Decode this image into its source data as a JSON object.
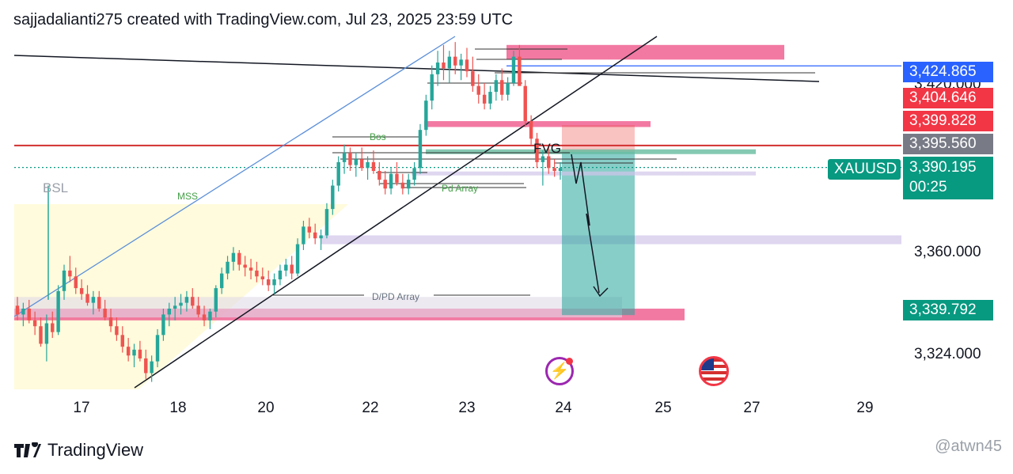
{
  "header": {
    "text": "sajjadalianti275 created with TradingView.com, Jul 23, 2025 23:59 UTC"
  },
  "footer": {
    "brand": "TradingView",
    "watermark": "@atwn45"
  },
  "drawing_labels": {
    "bsl": "BSL",
    "mss": "MSS",
    "bos": "Bos",
    "fvg": "FVG",
    "pd_array": "Pd Array",
    "dpd_array": "D/PD Array"
  },
  "price_tags": {
    "hline_top": "3,424.865",
    "partial_behind": "3,420.000",
    "red_level": "3,404.646",
    "red_level_2": "3,399.828",
    "grey_level": "3,395.560",
    "symbol": "XAUUSD",
    "current": "3,390.195",
    "countdown": "00:25",
    "target": "3,339.792"
  },
  "colors": {
    "up": "#26a69a",
    "down": "#ef5350",
    "blue_tag": "#2962ff",
    "red_tag": "#f23645",
    "grey_tag": "#787b86",
    "teal_tag": "#089981",
    "pink_zone": "#f06292",
    "lavender_zone": "#d1c4e9",
    "yellow_zone": "#fff9c4",
    "target_zone": "#26a69a",
    "stop_zone": "#ef5350"
  },
  "icons": [
    "tradingview-logo-icon",
    "lightning-event-icon",
    "us-flag-event-icon"
  ],
  "chart_data": {
    "type": "candlestick",
    "symbol": "XAUUSD",
    "x_labels": [
      "17",
      "18",
      "20",
      "22",
      "23",
      "24",
      "25",
      "27",
      "29"
    ],
    "y_labels": [
      "3,324.000",
      "3,360.000"
    ],
    "ylim": [
      3315,
      3436
    ],
    "current_price": 3390.195,
    "levels": {
      "blue_hline": 3424.865,
      "red_level": 3404.646,
      "red_level_2": 3399.828,
      "grey_level": 3395.56,
      "current": 3390.195,
      "target": 3339.792
    },
    "candles_ohlc": [
      [
        3343,
        3346,
        3338,
        3340
      ],
      [
        3340,
        3344,
        3336,
        3342
      ],
      [
        3342,
        3345,
        3337,
        3338
      ],
      [
        3338,
        3341,
        3333,
        3336
      ],
      [
        3336,
        3339,
        3329,
        3330
      ],
      [
        3330,
        3340,
        3324,
        3337
      ],
      [
        3337,
        3341,
        3332,
        3334
      ],
      [
        3334,
        3350,
        3333,
        3348
      ],
      [
        3348,
        3357,
        3345,
        3355
      ],
      [
        3355,
        3360,
        3351,
        3353
      ],
      [
        3353,
        3356,
        3347,
        3349
      ],
      [
        3349,
        3352,
        3345,
        3347
      ],
      [
        3347,
        3350,
        3343,
        3344
      ],
      [
        3344,
        3348,
        3340,
        3346
      ],
      [
        3346,
        3348,
        3341,
        3342
      ],
      [
        3342,
        3345,
        3338,
        3339
      ],
      [
        3339,
        3342,
        3334,
        3336
      ],
      [
        3336,
        3339,
        3331,
        3333
      ],
      [
        3333,
        3336,
        3327,
        3329
      ],
      [
        3329,
        3332,
        3324,
        3326
      ],
      [
        3326,
        3330,
        3322,
        3328
      ],
      [
        3328,
        3331,
        3324,
        3325
      ],
      [
        3325,
        3328,
        3318,
        3320
      ],
      [
        3320,
        3326,
        3317,
        3324
      ],
      [
        3324,
        3335,
        3322,
        3333
      ],
      [
        3333,
        3342,
        3331,
        3340
      ],
      [
        3340,
        3344,
        3336,
        3342
      ],
      [
        3342,
        3346,
        3338,
        3343
      ],
      [
        3343,
        3347,
        3340,
        3344
      ],
      [
        3344,
        3348,
        3341,
        3346
      ],
      [
        3346,
        3349,
        3342,
        3343
      ],
      [
        3343,
        3346,
        3339,
        3340
      ],
      [
        3340,
        3343,
        3336,
        3338
      ],
      [
        3338,
        3342,
        3335,
        3341
      ],
      [
        3341,
        3350,
        3339,
        3349
      ],
      [
        3349,
        3356,
        3347,
        3354
      ],
      [
        3354,
        3360,
        3352,
        3358
      ],
      [
        3358,
        3363,
        3355,
        3361
      ],
      [
        3361,
        3362,
        3355,
        3357
      ],
      [
        3357,
        3360,
        3353,
        3356
      ],
      [
        3356,
        3359,
        3352,
        3355
      ],
      [
        3355,
        3358,
        3351,
        3353
      ],
      [
        3353,
        3356,
        3350,
        3352
      ],
      [
        3352,
        3355,
        3348,
        3350
      ],
      [
        3350,
        3354,
        3347,
        3352
      ],
      [
        3352,
        3357,
        3350,
        3355
      ],
      [
        3355,
        3359,
        3353,
        3357
      ],
      [
        3357,
        3360,
        3352,
        3354
      ],
      [
        3354,
        3366,
        3353,
        3364
      ],
      [
        3364,
        3372,
        3362,
        3370
      ],
      [
        3370,
        3373,
        3366,
        3368
      ],
      [
        3368,
        3371,
        3364,
        3366
      ],
      [
        3366,
        3369,
        3362,
        3367
      ],
      [
        3367,
        3378,
        3366,
        3376
      ],
      [
        3376,
        3386,
        3374,
        3384
      ],
      [
        3384,
        3394,
        3382,
        3392
      ],
      [
        3392,
        3398,
        3388,
        3395
      ],
      [
        3395,
        3397,
        3389,
        3391
      ],
      [
        3391,
        3395,
        3387,
        3393
      ],
      [
        3393,
        3397,
        3389,
        3390
      ],
      [
        3390,
        3394,
        3386,
        3392
      ],
      [
        3392,
        3396,
        3388,
        3389
      ],
      [
        3389,
        3392,
        3384,
        3386
      ],
      [
        3386,
        3389,
        3381,
        3383
      ],
      [
        3383,
        3390,
        3381,
        3388
      ],
      [
        3388,
        3392,
        3384,
        3385
      ],
      [
        3385,
        3388,
        3381,
        3383
      ],
      [
        3383,
        3388,
        3381,
        3386
      ],
      [
        3386,
        3392,
        3384,
        3390
      ],
      [
        3390,
        3405,
        3388,
        3403
      ],
      [
        3403,
        3415,
        3401,
        3413
      ],
      [
        3413,
        3425,
        3410,
        3422
      ],
      [
        3422,
        3430,
        3418,
        3426
      ],
      [
        3426,
        3432,
        3420,
        3424
      ],
      [
        3424,
        3430,
        3419,
        3428
      ],
      [
        3428,
        3433,
        3422,
        3425
      ],
      [
        3425,
        3429,
        3420,
        3427
      ],
      [
        3427,
        3431,
        3421,
        3423
      ],
      [
        3423,
        3428,
        3416,
        3418
      ],
      [
        3418,
        3422,
        3412,
        3415
      ],
      [
        3415,
        3419,
        3410,
        3412
      ],
      [
        3412,
        3418,
        3410,
        3416
      ],
      [
        3416,
        3422,
        3413,
        3420
      ],
      [
        3420,
        3424,
        3413,
        3415
      ],
      [
        3415,
        3421,
        3413,
        3419
      ],
      [
        3419,
        3430,
        3418,
        3428
      ],
      [
        3428,
        3432,
        3420,
        3418
      ],
      [
        3418,
        3420,
        3404,
        3406
      ],
      [
        3406,
        3408,
        3398,
        3400
      ],
      [
        3400,
        3402,
        3390,
        3392
      ],
      [
        3392,
        3396,
        3384,
        3394
      ],
      [
        3394,
        3398,
        3388,
        3390
      ],
      [
        3390,
        3393,
        3387,
        3389
      ],
      [
        3389,
        3392,
        3386,
        3390
      ]
    ],
    "zones": [
      {
        "name": "pink-supply-top",
        "from": 3427,
        "to": 3432
      },
      {
        "name": "pink-mid",
        "from": 3404,
        "to": 3406
      },
      {
        "name": "lavender-fvg",
        "from": 3364,
        "to": 3367
      },
      {
        "name": "pink-demand",
        "from": 3338,
        "to": 3342
      },
      {
        "name": "d-pd-array",
        "from": 3339,
        "to": 3346
      },
      {
        "name": "stop-zone",
        "from": 3395.56,
        "to": 3404.646
      },
      {
        "name": "target-zone",
        "from": 3339.792,
        "to": 3395.56
      }
    ],
    "grid": false
  }
}
